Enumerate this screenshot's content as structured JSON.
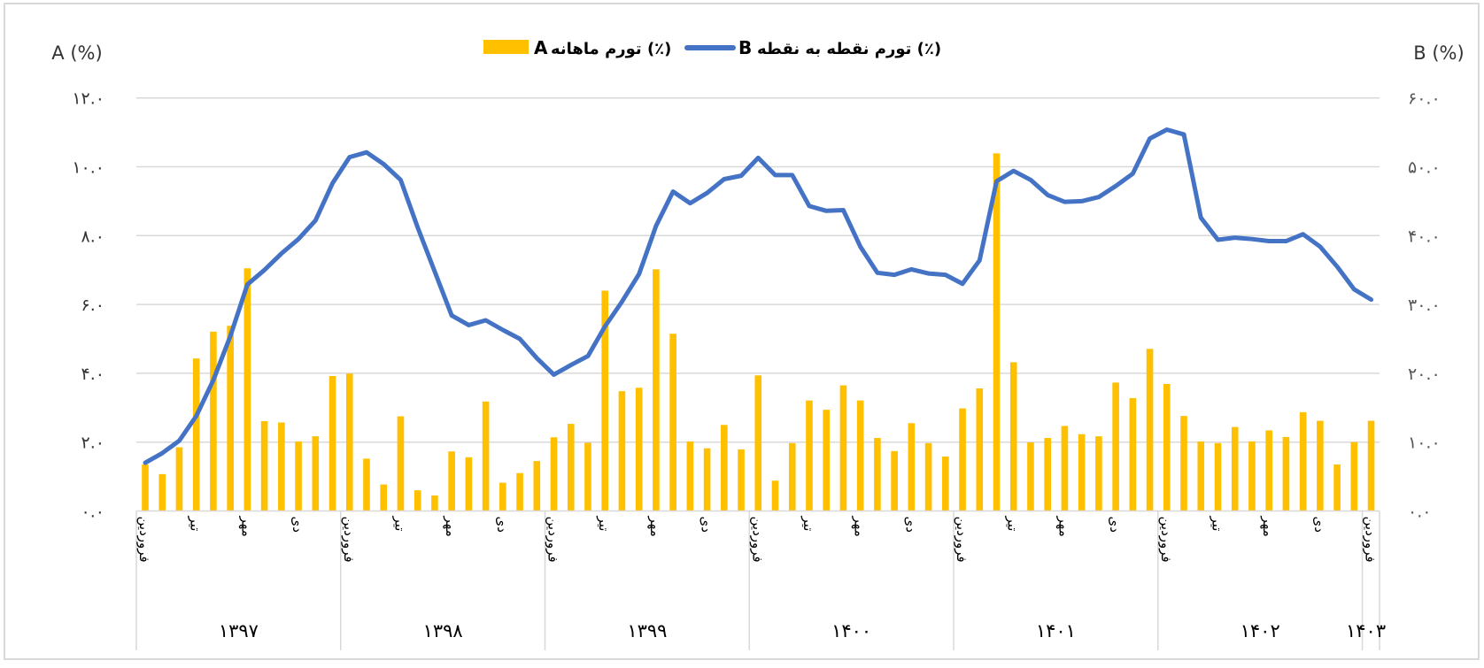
{
  "chart_data": {
    "type": "bar+line",
    "title": "",
    "left_axis": {
      "label": "A (%)",
      "range": [
        0,
        12
      ],
      "ticks": [
        0,
        2,
        4,
        6,
        8,
        10,
        12
      ],
      "tick_labels": [
        "۰.۰",
        "۲.۰",
        "۴.۰",
        "۶.۰",
        "۸.۰",
        "۱۰.۰",
        "۱۲.۰"
      ]
    },
    "right_axis": {
      "label": "B (%)",
      "range": [
        0,
        60
      ],
      "ticks": [
        0,
        10,
        20,
        30,
        40,
        50,
        60
      ],
      "tick_labels": [
        "۰.۰",
        "۱۰.۰",
        "۲۰.۰",
        "۳۰.۰",
        "۴۰.۰",
        "۵۰.۰",
        "۶۰.۰"
      ]
    },
    "grid": true,
    "legend_position": "top-center",
    "years": [
      "۱۳۹۷",
      "۱۳۹۸",
      "۱۳۹۹",
      "۱۴۰۰",
      "۱۴۰۱",
      "۱۴۰۲",
      "۱۴۰۳"
    ],
    "month_labels": [
      "فروردین",
      "تیر",
      "مهر",
      "دی"
    ],
    "series": [
      {
        "name": "A",
        "legend_text": "تورم ماهانه (٪)",
        "type": "bar",
        "axis": "left",
        "color": "#FFC000",
        "values": [
          1.35,
          1.07,
          1.85,
          4.43,
          5.21,
          5.38,
          7.05,
          2.61,
          2.57,
          2.02,
          2.17,
          3.92,
          3.99,
          1.52,
          0.77,
          2.75,
          0.6,
          0.45,
          1.73,
          1.56,
          3.18,
          0.82,
          1.1,
          1.45,
          2.14,
          2.53,
          1.98,
          6.4,
          3.48,
          3.58,
          7.02,
          5.15,
          2.02,
          1.82,
          2.5,
          1.79,
          3.94,
          0.88,
          1.97,
          3.21,
          2.94,
          3.65,
          3.21,
          2.12,
          1.74,
          2.55,
          1.97,
          1.58,
          2.98,
          3.56,
          10.39,
          4.32,
          1.99,
          2.12,
          2.47,
          2.23,
          2.17,
          3.73,
          3.28,
          4.71,
          3.69,
          2.76,
          2.02,
          1.97,
          2.44,
          2.02,
          2.34,
          2.15,
          2.87,
          2.62,
          1.35,
          2.0,
          2.62
        ]
      },
      {
        "name": "B",
        "legend_text": "تورم نقطه به نقطه (٪)",
        "type": "line",
        "axis": "right",
        "color": "#4472C4",
        "values": [
          7.0,
          8.4,
          10.2,
          13.8,
          19.0,
          25.4,
          32.9,
          35.0,
          37.4,
          39.5,
          42.2,
          47.6,
          51.4,
          52.1,
          50.4,
          48.1,
          41.2,
          34.8,
          28.4,
          27.0,
          27.7,
          26.3,
          25.0,
          22.2,
          19.8,
          21.2,
          22.5,
          26.8,
          30.4,
          34.4,
          41.4,
          46.4,
          44.7,
          46.2,
          48.2,
          48.7,
          51.3,
          48.8,
          48.8,
          44.3,
          43.6,
          43.7,
          38.4,
          34.6,
          34.3,
          35.1,
          34.5,
          34.3,
          33.0,
          36.4,
          47.9,
          49.4,
          48.1,
          45.9,
          44.9,
          45.0,
          45.6,
          47.2,
          49.0,
          54.1,
          55.4,
          54.7,
          42.6,
          39.4,
          39.7,
          39.5,
          39.2,
          39.2,
          40.2,
          38.4,
          35.5,
          32.2,
          30.7
        ]
      }
    ]
  }
}
